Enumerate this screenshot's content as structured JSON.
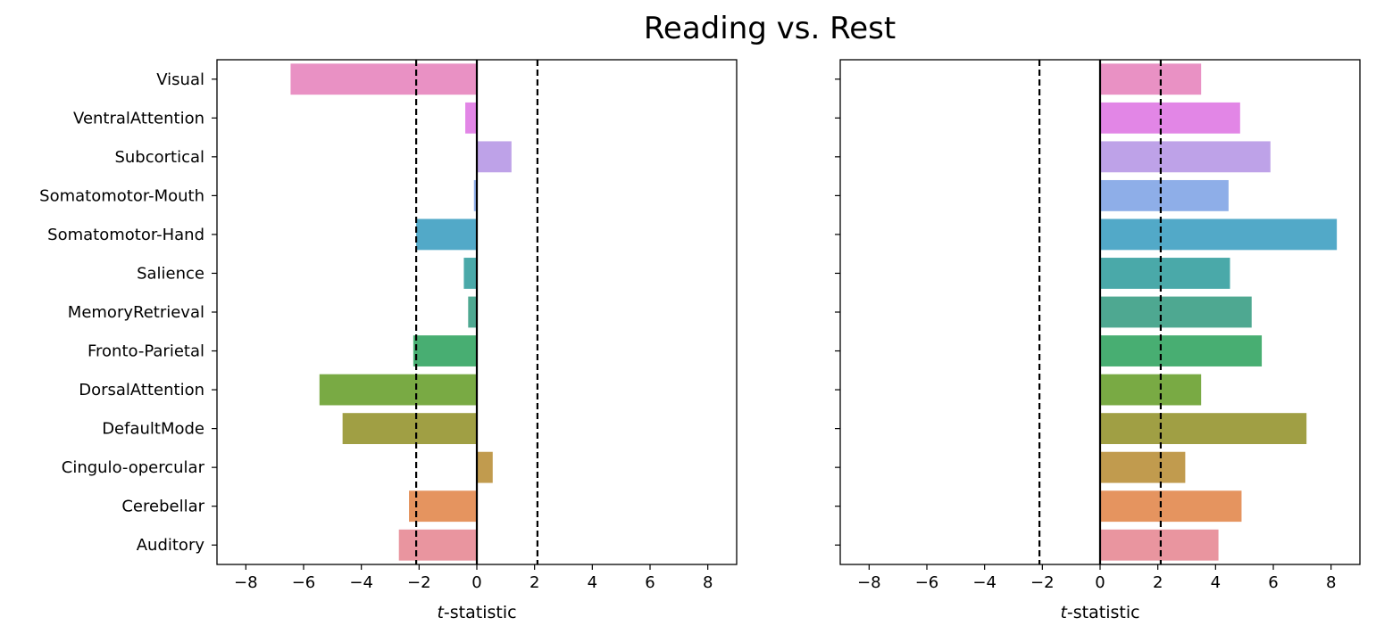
{
  "chart_data": {
    "type": "bar",
    "orientation": "horizontal",
    "title": "Reading vs. Rest",
    "categories": [
      "Visual",
      "VentralAttention",
      "Subcortical",
      "Somatomotor-Mouth",
      "Somatomotor-Hand",
      "Salience",
      "MemoryRetrieval",
      "Fronto-Parietal",
      "DorsalAttention",
      "DefaultMode",
      "Cingulo-opercular",
      "Cerebellar",
      "Auditory"
    ],
    "colors": [
      "#e991c4",
      "#e286e6",
      "#bea2e8",
      "#8eaee8",
      "#52a9c8",
      "#4aa9a9",
      "#4ea891",
      "#48ae72",
      "#79aa44",
      "#a09f44",
      "#c19b4e",
      "#e5945f",
      "#e9959f"
    ],
    "xlim": [
      -9,
      9
    ],
    "xticks": [
      -8,
      -6,
      -4,
      -2,
      0,
      2,
      4,
      6,
      8
    ],
    "xtick_labels": [
      "−8",
      "−6",
      "−4",
      "−2",
      "0",
      "2",
      "4",
      "6",
      "8"
    ],
    "xlabel_italic": "t",
    "xlabel_rest": "-statistic",
    "threshold_lines": [
      -2.1,
      2.1
    ],
    "zero_line": 0,
    "panels": [
      {
        "name": "left",
        "values": [
          -6.45,
          -0.4,
          1.2,
          -0.1,
          -2.1,
          -0.45,
          -0.3,
          -2.2,
          -5.45,
          -4.65,
          0.55,
          -2.35,
          -2.7
        ]
      },
      {
        "name": "right",
        "values": [
          3.5,
          4.85,
          5.9,
          4.45,
          8.2,
          4.5,
          5.25,
          5.6,
          3.5,
          7.15,
          2.95,
          4.9,
          4.1
        ]
      }
    ]
  }
}
